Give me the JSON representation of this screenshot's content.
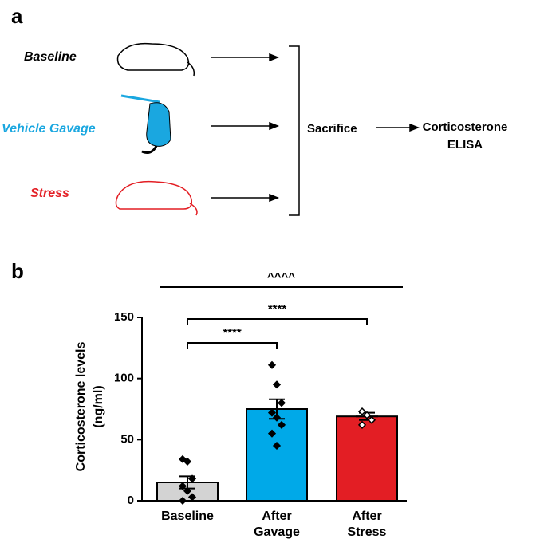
{
  "panel_a": {
    "label": "a",
    "groups": [
      {
        "label": "Baseline",
        "color": "#000000"
      },
      {
        "label": "Vehicle Gavage",
        "color": "#1aa7e0"
      },
      {
        "label": "Stress",
        "color": "#e31e24"
      }
    ],
    "step": "Sacrifice",
    "outcome": [
      "Corticosterone",
      "ELISA"
    ]
  },
  "chart_data": {
    "type": "bar",
    "panel_label": "b",
    "ylabel": [
      "Corticosterone levels",
      "(ng/ml)"
    ],
    "categories": [
      "Baseline",
      "After Gavage",
      "After Stress"
    ],
    "values": [
      15,
      75,
      69
    ],
    "errors": [
      5,
      8,
      3
    ],
    "colors": [
      "#d3d3d3",
      "#00a9e8",
      "#e31e24"
    ],
    "points": [
      [
        34,
        32,
        18,
        12,
        8,
        3,
        0
      ],
      [
        111,
        95,
        80,
        72,
        68,
        62,
        55,
        45
      ],
      [
        73,
        70,
        66,
        62
      ]
    ],
    "point_fills": [
      "#000000",
      "#000000",
      "#ffffff"
    ],
    "ylim": [
      0,
      150
    ],
    "yticks": [
      0,
      50,
      100,
      150
    ],
    "annotations": [
      "****",
      "****",
      "^^^^"
    ]
  }
}
